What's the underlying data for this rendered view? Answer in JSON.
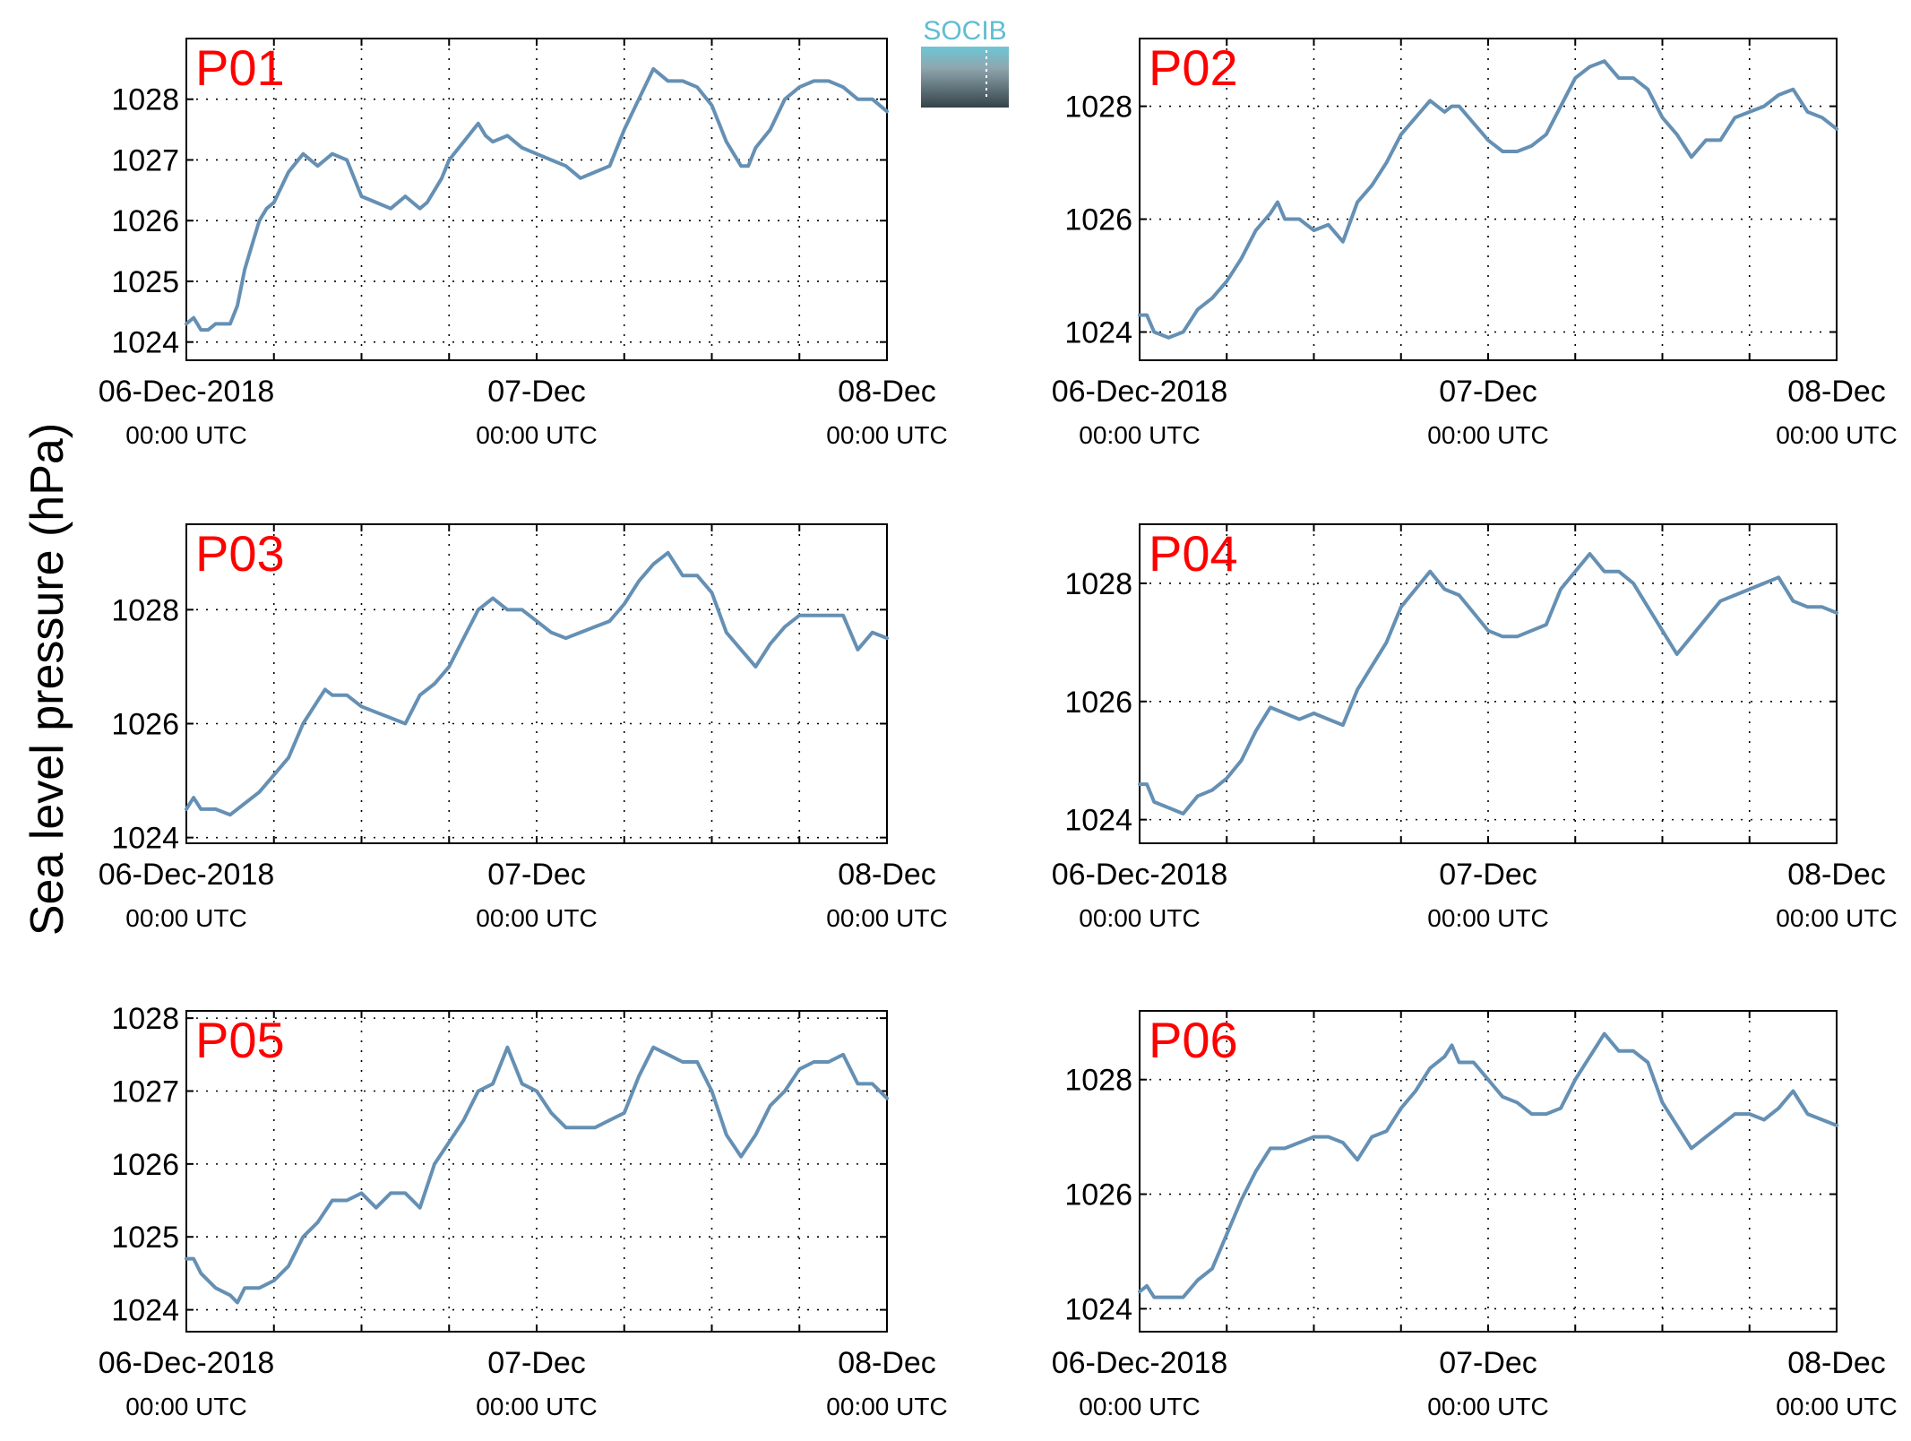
{
  "figure": {
    "ylabel": "Sea level pressure (hPa)",
    "logo_text": "SOCIB",
    "line_color": "#6590b4",
    "label_color": "#ff0000"
  },
  "chart_data": [
    {
      "type": "line",
      "title": "P01",
      "ylim": [
        1023.7,
        1029.0
      ],
      "yticks": [
        1024,
        1025,
        1026,
        1027,
        1028
      ],
      "xlim": [
        0,
        48
      ],
      "xticks": [
        {
          "x": 0,
          "date": "06-Dec-2018",
          "time": "00:00 UTC"
        },
        {
          "x": 24,
          "date": "07-Dec",
          "time": "00:00 UTC"
        },
        {
          "x": 48,
          "date": "08-Dec",
          "time": "00:00 UTC"
        }
      ],
      "grid": true,
      "x": [
        0,
        0.5,
        1,
        1.5,
        2,
        2.5,
        3,
        3.5,
        4,
        4.5,
        5,
        5.5,
        6,
        7,
        8,
        9,
        10,
        11,
        12,
        13,
        14,
        15,
        16,
        16.5,
        17,
        17.5,
        18,
        19,
        20,
        20.5,
        21,
        22,
        23,
        24,
        25,
        26,
        27,
        28,
        29,
        30,
        31,
        32,
        33,
        34,
        35,
        36,
        37,
        38,
        38.5,
        39,
        40,
        41,
        42,
        43,
        44,
        45,
        46,
        47,
        48
      ],
      "y": [
        1024.3,
        1024.4,
        1024.2,
        1024.2,
        1024.3,
        1024.3,
        1024.3,
        1024.6,
        1025.2,
        1025.6,
        1026.0,
        1026.2,
        1026.3,
        1026.8,
        1027.1,
        1026.9,
        1027.1,
        1027.0,
        1026.4,
        1026.3,
        1026.2,
        1026.4,
        1026.2,
        1026.3,
        1026.5,
        1026.7,
        1027.0,
        1027.3,
        1027.6,
        1027.4,
        1027.3,
        1027.4,
        1027.2,
        1027.1,
        1027.0,
        1026.9,
        1026.7,
        1026.8,
        1026.9,
        1027.5,
        1028.0,
        1028.5,
        1028.3,
        1028.3,
        1028.2,
        1027.9,
        1027.3,
        1026.9,
        1026.9,
        1027.2,
        1027.5,
        1028.0,
        1028.2,
        1028.3,
        1028.3,
        1028.2,
        1028.0,
        1028.0,
        1027.8
      ]
    },
    {
      "type": "line",
      "title": "P02",
      "ylim": [
        1023.5,
        1029.2
      ],
      "yticks": [
        1024,
        1026,
        1028
      ],
      "xlim": [
        0,
        48
      ],
      "xticks": [
        {
          "x": 0,
          "date": "06-Dec-2018",
          "time": "00:00 UTC"
        },
        {
          "x": 24,
          "date": "07-Dec",
          "time": "00:00 UTC"
        },
        {
          "x": 48,
          "date": "08-Dec",
          "time": "00:00 UTC"
        }
      ],
      "grid": true,
      "x": [
        0,
        0.5,
        1,
        2,
        3,
        4,
        5,
        6,
        7,
        8,
        9,
        9.5,
        10,
        11,
        12,
        13,
        14,
        15,
        16,
        17,
        18,
        19,
        20,
        21,
        21.5,
        22,
        23,
        24,
        25,
        26,
        27,
        28,
        29,
        30,
        31,
        32,
        33,
        34,
        35,
        36,
        37,
        38,
        39,
        40,
        41,
        42,
        43,
        44,
        45,
        46,
        47,
        48
      ],
      "y": [
        1024.3,
        1024.3,
        1024.0,
        1023.9,
        1024.0,
        1024.4,
        1024.6,
        1024.9,
        1025.3,
        1025.8,
        1026.1,
        1026.3,
        1026.0,
        1026.0,
        1025.8,
        1025.9,
        1025.6,
        1026.3,
        1026.6,
        1027.0,
        1027.5,
        1027.8,
        1028.1,
        1027.9,
        1028.0,
        1028.0,
        1027.7,
        1027.4,
        1027.2,
        1027.2,
        1027.3,
        1027.5,
        1028.0,
        1028.5,
        1028.7,
        1028.8,
        1028.5,
        1028.5,
        1028.3,
        1027.8,
        1027.5,
        1027.1,
        1027.4,
        1027.4,
        1027.8,
        1027.9,
        1028.0,
        1028.2,
        1028.3,
        1027.9,
        1027.8,
        1027.6
      ]
    },
    {
      "type": "line",
      "title": "P03",
      "ylim": [
        1023.9,
        1029.5
      ],
      "yticks": [
        1024,
        1026,
        1028
      ],
      "xlim": [
        0,
        48
      ],
      "xticks": [
        {
          "x": 0,
          "date": "06-Dec-2018",
          "time": "00:00 UTC"
        },
        {
          "x": 24,
          "date": "07-Dec",
          "time": "00:00 UTC"
        },
        {
          "x": 48,
          "date": "08-Dec",
          "time": "00:00 UTC"
        }
      ],
      "grid": true,
      "x": [
        0,
        0.5,
        1,
        2,
        3,
        4,
        5,
        6,
        7,
        8,
        9,
        9.5,
        10,
        11,
        12,
        13,
        14,
        15,
        16,
        17,
        18,
        19,
        20,
        21,
        22,
        23,
        24,
        25,
        26,
        27,
        28,
        29,
        30,
        31,
        32,
        33,
        34,
        35,
        36,
        37,
        38,
        39,
        40,
        41,
        42,
        43,
        44,
        45,
        46,
        47,
        48
      ],
      "y": [
        1024.5,
        1024.7,
        1024.5,
        1024.5,
        1024.4,
        1024.6,
        1024.8,
        1025.1,
        1025.4,
        1026.0,
        1026.4,
        1026.6,
        1026.5,
        1026.5,
        1026.3,
        1026.2,
        1026.1,
        1026.0,
        1026.5,
        1026.7,
        1027.0,
        1027.5,
        1028.0,
        1028.2,
        1028.0,
        1028.0,
        1027.8,
        1027.6,
        1027.5,
        1027.6,
        1027.7,
        1027.8,
        1028.1,
        1028.5,
        1028.8,
        1029.0,
        1028.6,
        1028.6,
        1028.3,
        1027.6,
        1027.3,
        1027.0,
        1027.4,
        1027.7,
        1027.9,
        1027.9,
        1027.9,
        1027.9,
        1027.3,
        1027.6,
        1027.5
      ]
    },
    {
      "type": "line",
      "title": "P04",
      "ylim": [
        1023.6,
        1029.0
      ],
      "yticks": [
        1024,
        1026,
        1028
      ],
      "xlim": [
        0,
        48
      ],
      "xticks": [
        {
          "x": 0,
          "date": "06-Dec-2018",
          "time": "00:00 UTC"
        },
        {
          "x": 24,
          "date": "07-Dec",
          "time": "00:00 UTC"
        },
        {
          "x": 48,
          "date": "08-Dec",
          "time": "00:00 UTC"
        }
      ],
      "grid": true,
      "x": [
        0,
        0.5,
        1,
        2,
        3,
        4,
        5,
        6,
        7,
        8,
        9,
        10,
        11,
        12,
        13,
        14,
        15,
        16,
        17,
        18,
        19,
        20,
        21,
        22,
        23,
        24,
        25,
        26,
        27,
        28,
        29,
        30,
        31,
        32,
        33,
        34,
        35,
        36,
        37,
        38,
        39,
        40,
        41,
        42,
        43,
        44,
        45,
        46,
        47,
        48
      ],
      "y": [
        1024.6,
        1024.6,
        1024.3,
        1024.2,
        1024.1,
        1024.4,
        1024.5,
        1024.7,
        1025.0,
        1025.5,
        1025.9,
        1025.8,
        1025.7,
        1025.8,
        1025.7,
        1025.6,
        1026.2,
        1026.6,
        1027.0,
        1027.6,
        1027.9,
        1028.2,
        1027.9,
        1027.8,
        1027.5,
        1027.2,
        1027.1,
        1027.1,
        1027.2,
        1027.3,
        1027.9,
        1028.2,
        1028.5,
        1028.2,
        1028.2,
        1028.0,
        1027.6,
        1027.2,
        1026.8,
        1027.1,
        1027.4,
        1027.7,
        1027.8,
        1027.9,
        1028.0,
        1028.1,
        1027.7,
        1027.6,
        1027.6,
        1027.5
      ]
    },
    {
      "type": "line",
      "title": "P05",
      "ylim": [
        1023.7,
        1028.1
      ],
      "yticks": [
        1024,
        1025,
        1026,
        1027,
        1028
      ],
      "xlim": [
        0,
        48
      ],
      "xticks": [
        {
          "x": 0,
          "date": "06-Dec-2018",
          "time": "00:00 UTC"
        },
        {
          "x": 24,
          "date": "07-Dec",
          "time": "00:00 UTC"
        },
        {
          "x": 48,
          "date": "08-Dec",
          "time": "00:00 UTC"
        }
      ],
      "grid": true,
      "x": [
        0,
        0.5,
        1,
        2,
        3,
        3.5,
        4,
        5,
        6,
        7,
        8,
        9,
        10,
        11,
        12,
        13,
        14,
        15,
        16,
        17,
        18,
        19,
        20,
        21,
        22,
        23,
        24,
        25,
        26,
        27,
        28,
        29,
        30,
        31,
        32,
        33,
        34,
        35,
        36,
        37,
        38,
        39,
        40,
        41,
        42,
        43,
        44,
        45,
        46,
        47,
        48
      ],
      "y": [
        1024.7,
        1024.7,
        1024.5,
        1024.3,
        1024.2,
        1024.1,
        1024.3,
        1024.3,
        1024.4,
        1024.6,
        1025.0,
        1025.2,
        1025.5,
        1025.5,
        1025.6,
        1025.4,
        1025.6,
        1025.6,
        1025.4,
        1026.0,
        1026.3,
        1026.6,
        1027.0,
        1027.1,
        1027.6,
        1027.1,
        1027.0,
        1026.7,
        1026.5,
        1026.5,
        1026.5,
        1026.6,
        1026.7,
        1027.2,
        1027.6,
        1027.5,
        1027.4,
        1027.4,
        1027.0,
        1026.4,
        1026.1,
        1026.4,
        1026.8,
        1027.0,
        1027.3,
        1027.4,
        1027.4,
        1027.5,
        1027.1,
        1027.1,
        1026.9
      ]
    },
    {
      "type": "line",
      "title": "P06",
      "ylim": [
        1023.6,
        1029.2
      ],
      "yticks": [
        1024,
        1026,
        1028
      ],
      "xlim": [
        0,
        48
      ],
      "xticks": [
        {
          "x": 0,
          "date": "06-Dec-2018",
          "time": "00:00 UTC"
        },
        {
          "x": 24,
          "date": "07-Dec",
          "time": "00:00 UTC"
        },
        {
          "x": 48,
          "date": "08-Dec",
          "time": "00:00 UTC"
        }
      ],
      "grid": true,
      "x": [
        0,
        0.5,
        1,
        2,
        3,
        4,
        5,
        6,
        7,
        8,
        9,
        10,
        11,
        12,
        13,
        14,
        15,
        16,
        17,
        18,
        19,
        20,
        21,
        21.5,
        22,
        23,
        24,
        25,
        26,
        27,
        28,
        29,
        30,
        31,
        32,
        33,
        34,
        35,
        36,
        37,
        38,
        39,
        40,
        41,
        42,
        43,
        44,
        45,
        46,
        47,
        48
      ],
      "y": [
        1024.3,
        1024.4,
        1024.2,
        1024.2,
        1024.2,
        1024.5,
        1024.7,
        1025.3,
        1025.9,
        1026.4,
        1026.8,
        1026.8,
        1026.9,
        1027.0,
        1027.0,
        1026.9,
        1026.6,
        1027.0,
        1027.1,
        1027.5,
        1027.8,
        1028.2,
        1028.4,
        1028.6,
        1028.3,
        1028.3,
        1028.0,
        1027.7,
        1027.6,
        1027.4,
        1027.4,
        1027.5,
        1028.0,
        1028.4,
        1028.8,
        1028.5,
        1028.5,
        1028.3,
        1027.6,
        1027.2,
        1026.8,
        1027.0,
        1027.2,
        1027.4,
        1027.4,
        1027.3,
        1027.5,
        1027.8,
        1027.4,
        1027.3,
        1027.2
      ]
    }
  ]
}
